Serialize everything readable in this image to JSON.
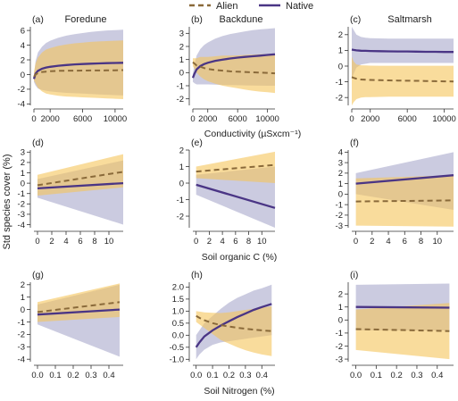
{
  "legend": {
    "placement": "top-center",
    "items": [
      {
        "name": "Alien",
        "color": "#8a6a3a",
        "dash": true
      },
      {
        "name": "Native",
        "color": "#4a3585",
        "dash": false
      }
    ]
  },
  "colors": {
    "alien_line": "#8a6a3a",
    "alien_band": "#f5c55a",
    "native_line": "#4a3585",
    "native_band": "#b9b9d6"
  },
  "ylabel": "Std species cover (%)",
  "row_xlabels": [
    "Conductivity (µSxcm⁻¹)",
    "Soil organic C (%)",
    "Soil Nitrogen (%)"
  ],
  "chart_data": [
    {
      "type": "line",
      "label": "(a)",
      "title": "Foredune",
      "xlabel": "",
      "ylabel": "",
      "xlim": [
        0,
        11000
      ],
      "ylim": [
        -4.2,
        6.5
      ],
      "xticks": [
        0,
        2000,
        6000,
        10000
      ],
      "yticks": [
        -4,
        -2,
        0,
        2,
        4,
        6
      ],
      "x": [
        0,
        200,
        500,
        1000,
        1500,
        2000,
        3000,
        4000,
        5000,
        6000,
        7000,
        8000,
        9000,
        10000,
        11000
      ],
      "series": [
        {
          "name": "Alien",
          "values": [
            -0.3,
            0.0,
            0.2,
            0.35,
            0.4,
            0.45,
            0.5,
            0.52,
            0.53,
            0.54,
            0.55,
            0.56,
            0.57,
            0.58,
            0.6
          ],
          "lower": [
            -0.8,
            -1.2,
            -1.8,
            -2.3,
            -2.6,
            -2.7,
            -2.9,
            -3.0,
            -3.05,
            -3.1,
            -3.15,
            -3.2,
            -3.25,
            -3.3,
            -3.35
          ],
          "upper": [
            0.3,
            1.5,
            2.3,
            3.0,
            3.4,
            3.6,
            3.9,
            4.1,
            4.25,
            4.35,
            4.45,
            4.5,
            4.55,
            4.6,
            4.65
          ]
        },
        {
          "name": "Native",
          "values": [
            -0.6,
            0.1,
            0.5,
            0.8,
            0.95,
            1.05,
            1.2,
            1.3,
            1.38,
            1.43,
            1.48,
            1.52,
            1.55,
            1.58,
            1.6
          ],
          "lower": [
            -1.0,
            -1.5,
            -1.9,
            -2.1,
            -2.2,
            -2.3,
            -2.4,
            -2.5,
            -2.55,
            -2.6,
            -2.65,
            -2.7,
            -2.75,
            -2.8,
            -2.85
          ],
          "upper": [
            -0.2,
            1.8,
            3.0,
            3.8,
            4.3,
            4.6,
            5.0,
            5.3,
            5.5,
            5.65,
            5.8,
            5.9,
            6.0,
            6.05,
            6.1
          ]
        }
      ]
    },
    {
      "type": "line",
      "label": "(b)",
      "title": "Backdune",
      "xlabel": "Conductivity (µSxcm⁻¹)",
      "ylabel": "",
      "xlim": [
        0,
        11000
      ],
      "ylim": [
        -2.5,
        3.5
      ],
      "xticks": [
        0,
        2000,
        6000,
        10000
      ],
      "yticks": [
        -2,
        -1,
        0,
        1,
        2,
        3
      ],
      "x": [
        0,
        200,
        500,
        1000,
        1500,
        2000,
        3000,
        4000,
        5000,
        6000,
        7000,
        8000,
        9000,
        10000,
        11000
      ],
      "series": [
        {
          "name": "Alien",
          "values": [
            0.8,
            0.7,
            0.55,
            0.45,
            0.35,
            0.28,
            0.2,
            0.15,
            0.1,
            0.07,
            0.05,
            0.02,
            0.0,
            -0.02,
            -0.05
          ],
          "lower": [
            0.5,
            0.3,
            0.0,
            -0.3,
            -0.5,
            -0.65,
            -0.85,
            -1.0,
            -1.1,
            -1.2,
            -1.3,
            -1.38,
            -1.45,
            -1.5,
            -1.55
          ],
          "upper": [
            1.1,
            1.1,
            1.1,
            1.2,
            1.2,
            1.2,
            1.25,
            1.3,
            1.3,
            1.32,
            1.35,
            1.38,
            1.4,
            1.42,
            1.45
          ]
        },
        {
          "name": "Native",
          "values": [
            -0.4,
            -0.1,
            0.25,
            0.5,
            0.65,
            0.75,
            0.9,
            1.0,
            1.08,
            1.15,
            1.2,
            1.25,
            1.3,
            1.35,
            1.4
          ],
          "lower": [
            -0.7,
            -0.8,
            -0.9,
            -0.9,
            -0.9,
            -0.9,
            -0.92,
            -0.94,
            -0.95,
            -0.96,
            -0.97,
            -0.98,
            -0.99,
            -1.0,
            -1.0
          ],
          "upper": [
            -0.1,
            0.6,
            1.3,
            1.8,
            2.1,
            2.3,
            2.6,
            2.8,
            2.95,
            3.05,
            3.15,
            3.25,
            3.3,
            3.35,
            3.4
          ]
        }
      ]
    },
    {
      "type": "line",
      "label": "(c)",
      "title": "Saltmarsh",
      "xlabel": "",
      "ylabel": "",
      "xlim": [
        0,
        11000
      ],
      "ylim": [
        -2.5,
        2.5
      ],
      "xticks": [
        0,
        2000,
        6000,
        10000
      ],
      "yticks": [
        -2,
        -1,
        0,
        1,
        2
      ],
      "x": [
        0,
        200,
        500,
        1000,
        1500,
        2000,
        3000,
        4000,
        5000,
        6000,
        7000,
        8000,
        9000,
        10000,
        11000
      ],
      "series": [
        {
          "name": "Alien",
          "values": [
            -0.7,
            -0.75,
            -0.8,
            -0.85,
            -0.87,
            -0.88,
            -0.9,
            -0.91,
            -0.92,
            -0.93,
            -0.94,
            -0.95,
            -0.96,
            -0.97,
            -0.98
          ],
          "lower": [
            -2.5,
            -2.3,
            -2.1,
            -2.0,
            -1.98,
            -1.97,
            -1.96,
            -1.95,
            -1.95,
            -1.95,
            -1.95,
            -1.95,
            -1.95,
            -1.95,
            -1.95
          ],
          "upper": [
            0.6,
            0.3,
            0.1,
            0.05,
            0.04,
            0.03,
            0.02,
            0.02,
            0.02,
            0.02,
            0.02,
            0.02,
            0.02,
            0.02,
            0.02
          ]
        },
        {
          "name": "Native",
          "values": [
            1.05,
            1.03,
            1.0,
            0.98,
            0.97,
            0.96,
            0.95,
            0.94,
            0.93,
            0.93,
            0.92,
            0.91,
            0.91,
            0.9,
            0.9
          ],
          "lower": [
            -0.8,
            -0.5,
            -0.1,
            0.1,
            0.15,
            0.2,
            0.2,
            0.2,
            0.2,
            0.2,
            0.2,
            0.2,
            0.2,
            0.2,
            0.2
          ],
          "upper": [
            2.5,
            2.3,
            2.0,
            1.85,
            1.8,
            1.78,
            1.76,
            1.75,
            1.75,
            1.75,
            1.75,
            1.75,
            1.75,
            1.75,
            1.75
          ]
        }
      ]
    },
    {
      "type": "line",
      "label": "(d)",
      "title": "",
      "xlabel": "",
      "ylabel": "",
      "xlim": [
        -0.5,
        12
      ],
      "ylim": [
        -4.3,
        3.2
      ],
      "xticks": [
        0,
        2,
        4,
        6,
        8,
        10
      ],
      "yticks": [
        -4,
        -3,
        -2,
        -1,
        0,
        1,
        2,
        3
      ],
      "x": [
        0,
        12
      ],
      "series": [
        {
          "name": "Alien",
          "values": [
            -0.2,
            1.1
          ],
          "lower": [
            -1.2,
            -0.4
          ],
          "upper": [
            0.8,
            2.8
          ]
        },
        {
          "name": "Native",
          "values": [
            -0.5,
            0.0
          ],
          "lower": [
            -1.4,
            -4.0
          ],
          "upper": [
            0.4,
            2.2
          ]
        }
      ]
    },
    {
      "type": "line",
      "label": "(e)",
      "title": "",
      "xlabel": "Soil organic C (%)",
      "ylabel": "",
      "xlim": [
        -0.5,
        12
      ],
      "ylim": [
        -2.7,
        2.0
      ],
      "xticks": [
        0,
        2,
        4,
        6,
        8,
        10
      ],
      "yticks": [
        -2,
        -1,
        0,
        1,
        2
      ],
      "x": [
        0,
        12
      ],
      "series": [
        {
          "name": "Alien",
          "values": [
            0.7,
            1.1
          ],
          "lower": [
            0.3,
            0.0
          ],
          "upper": [
            1.0,
            1.9
          ]
        },
        {
          "name": "Native",
          "values": [
            -0.1,
            -1.5
          ],
          "lower": [
            -0.7,
            -2.7
          ],
          "upper": [
            0.5,
            1.0
          ]
        }
      ]
    },
    {
      "type": "line",
      "label": "(f)",
      "title": "",
      "xlabel": "",
      "ylabel": "",
      "xlim": [
        -0.5,
        12
      ],
      "ylim": [
        -3.2,
        4.2
      ],
      "xticks": [
        0,
        2,
        4,
        6,
        8,
        10
      ],
      "yticks": [
        -3,
        -2,
        -1,
        0,
        1,
        2,
        3,
        4
      ],
      "x": [
        0,
        12
      ],
      "series": [
        {
          "name": "Alien",
          "values": [
            -0.7,
            -0.6
          ],
          "lower": [
            -3.0,
            -3.1
          ],
          "upper": [
            1.5,
            1.8
          ]
        },
        {
          "name": "Native",
          "values": [
            1.0,
            1.8
          ],
          "lower": [
            0.0,
            -1.5
          ],
          "upper": [
            2.0,
            4.0
          ]
        }
      ]
    },
    {
      "type": "line",
      "label": "(g)",
      "title": "",
      "xlabel": "",
      "ylabel": "",
      "xlim": [
        -0.02,
        0.48
      ],
      "ylim": [
        -4.2,
        2.2
      ],
      "xticks": [
        0.0,
        0.1,
        0.2,
        0.3,
        0.4
      ],
      "yticks": [
        -4,
        -3,
        -2,
        -1,
        0,
        1,
        2
      ],
      "x": [
        0,
        0.46
      ],
      "series": [
        {
          "name": "Alien",
          "values": [
            -0.2,
            0.6
          ],
          "lower": [
            -1.0,
            -0.6
          ],
          "upper": [
            0.6,
            2.1
          ]
        },
        {
          "name": "Native",
          "values": [
            -0.4,
            0.0
          ],
          "lower": [
            -1.2,
            -3.8
          ],
          "upper": [
            0.4,
            2.0
          ]
        }
      ]
    },
    {
      "type": "line",
      "label": "(h)",
      "title": "",
      "xlabel": "Soil Nitrogen (%)",
      "ylabel": "",
      "xlim": [
        -0.02,
        0.48
      ],
      "ylim": [
        -1.1,
        2.2
      ],
      "xticks": [
        0.0,
        0.1,
        0.2,
        0.3,
        0.4
      ],
      "yticks": [
        -1.0,
        -0.5,
        0.0,
        0.5,
        1.0,
        1.5,
        2.0
      ],
      "x": [
        0,
        0.02,
        0.05,
        0.1,
        0.15,
        0.2,
        0.25,
        0.3,
        0.35,
        0.4,
        0.46
      ],
      "series": [
        {
          "name": "Alien",
          "values": [
            0.8,
            0.72,
            0.62,
            0.5,
            0.42,
            0.36,
            0.31,
            0.27,
            0.23,
            0.2,
            0.17
          ],
          "lower": [
            0.55,
            0.45,
            0.3,
            0.05,
            -0.2,
            -0.35,
            -0.5,
            -0.62,
            -0.72,
            -0.8,
            -0.87
          ],
          "upper": [
            1.0,
            0.98,
            0.95,
            0.93,
            0.92,
            0.95,
            1.0,
            1.05,
            1.1,
            1.15,
            1.2
          ]
        },
        {
          "name": "Native",
          "values": [
            -0.5,
            -0.3,
            -0.05,
            0.2,
            0.4,
            0.58,
            0.75,
            0.9,
            1.05,
            1.17,
            1.3
          ],
          "lower": [
            -1.0,
            -0.8,
            -0.6,
            -0.4,
            -0.3,
            -0.25,
            -0.2,
            -0.15,
            -0.1,
            -0.05,
            0.0
          ],
          "upper": [
            0.0,
            0.2,
            0.5,
            0.8,
            1.1,
            1.35,
            1.55,
            1.7,
            1.85,
            1.95,
            2.1
          ]
        }
      ]
    },
    {
      "type": "line",
      "label": "(i)",
      "title": "",
      "xlabel": "",
      "ylabel": "",
      "xlim": [
        -0.02,
        0.48
      ],
      "ylim": [
        -3.2,
        2.9
      ],
      "xticks": [
        0.0,
        0.1,
        0.2,
        0.3,
        0.4
      ],
      "yticks": [
        -3,
        -2,
        -1,
        0,
        1,
        2
      ],
      "x": [
        0,
        0.46
      ],
      "series": [
        {
          "name": "Alien",
          "values": [
            -0.7,
            -0.85
          ],
          "lower": [
            -2.3,
            -3.0
          ],
          "upper": [
            0.8,
            1.3
          ]
        },
        {
          "name": "Native",
          "values": [
            1.0,
            0.95
          ],
          "lower": [
            -0.8,
            -0.8
          ],
          "upper": [
            2.7,
            2.8
          ]
        }
      ]
    }
  ]
}
